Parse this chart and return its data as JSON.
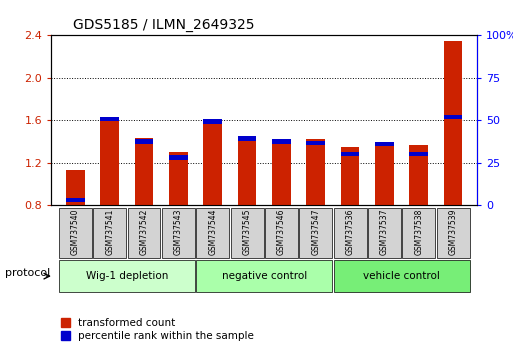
{
  "title": "GDS5185 / ILMN_2649325",
  "samples": [
    "GSM737540",
    "GSM737541",
    "GSM737542",
    "GSM737543",
    "GSM737544",
    "GSM737545",
    "GSM737546",
    "GSM737547",
    "GSM737536",
    "GSM737537",
    "GSM737538",
    "GSM737539"
  ],
  "red_values": [
    1.13,
    1.63,
    1.43,
    1.3,
    1.58,
    1.45,
    1.42,
    1.42,
    1.35,
    1.4,
    1.37,
    2.35
  ],
  "blue_values": [
    0.87,
    1.63,
    1.42,
    1.27,
    1.61,
    1.45,
    1.42,
    1.41,
    1.3,
    1.4,
    1.3,
    1.65
  ],
  "ylim_left": [
    0.8,
    2.4
  ],
  "ylim_right": [
    0,
    100
  ],
  "yticks_left": [
    0.8,
    1.2,
    1.6,
    2.0,
    2.4
  ],
  "yticks_right": [
    0,
    25,
    50,
    75,
    100
  ],
  "groups": [
    {
      "label": "Wig-1 depletion",
      "start": 0,
      "end": 4,
      "color": "#ccffcc"
    },
    {
      "label": "negative control",
      "start": 4,
      "end": 8,
      "color": "#aaffaa"
    },
    {
      "label": "vehicle control",
      "start": 8,
      "end": 12,
      "color": "#77ee77"
    }
  ],
  "red_color": "#cc2200",
  "blue_color": "#0000cc",
  "bg_color": "#ffffff",
  "legend_red": "transformed count",
  "legend_blue": "percentile rank within the sample",
  "protocol_label": "protocol"
}
